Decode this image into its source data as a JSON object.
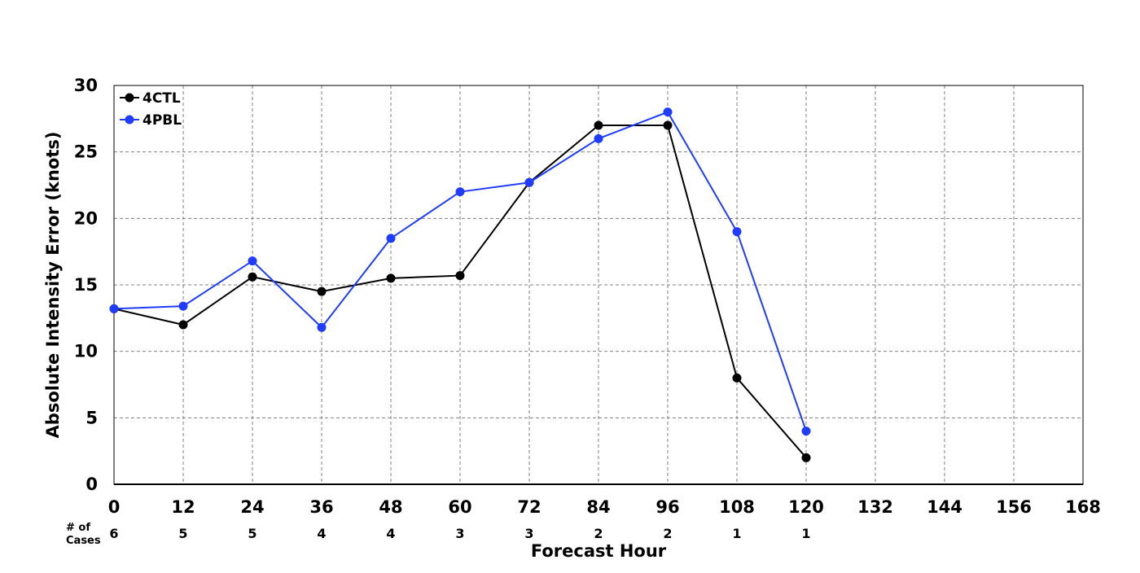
{
  "chart_data": {
    "type": "line",
    "title": "",
    "xlabel": "Forecast Hour",
    "ylabel": "Absolute Intensity Error (knots)",
    "xlim": [
      0,
      168
    ],
    "ylim": [
      0,
      30
    ],
    "x_ticks": [
      0,
      12,
      24,
      36,
      48,
      60,
      72,
      84,
      96,
      108,
      120,
      132,
      144,
      156,
      168
    ],
    "y_ticks": [
      0,
      5,
      10,
      15,
      20,
      25,
      30
    ],
    "grid": true,
    "legend_position": "top-left",
    "cases_label": "# of\nCases",
    "cases": [
      {
        "x": 0,
        "n": "6"
      },
      {
        "x": 12,
        "n": "5"
      },
      {
        "x": 24,
        "n": "5"
      },
      {
        "x": 36,
        "n": "4"
      },
      {
        "x": 48,
        "n": "4"
      },
      {
        "x": 60,
        "n": "3"
      },
      {
        "x": 72,
        "n": "3"
      },
      {
        "x": 84,
        "n": "2"
      },
      {
        "x": 96,
        "n": "2"
      },
      {
        "x": 108,
        "n": "1"
      },
      {
        "x": 120,
        "n": "1"
      }
    ],
    "x": [
      0,
      12,
      24,
      36,
      48,
      60,
      72,
      84,
      96,
      108,
      120
    ],
    "series": [
      {
        "name": "4CTL",
        "color": "#000000",
        "values": [
          13.2,
          12.0,
          15.6,
          14.5,
          15.5,
          15.7,
          22.7,
          27.0,
          27.0,
          8.0,
          2.0
        ]
      },
      {
        "name": "4PBL",
        "color": "#1f3cff",
        "values": [
          13.2,
          13.4,
          16.8,
          11.8,
          18.5,
          22.0,
          22.7,
          26.0,
          28.0,
          19.0,
          4.0
        ]
      }
    ]
  }
}
